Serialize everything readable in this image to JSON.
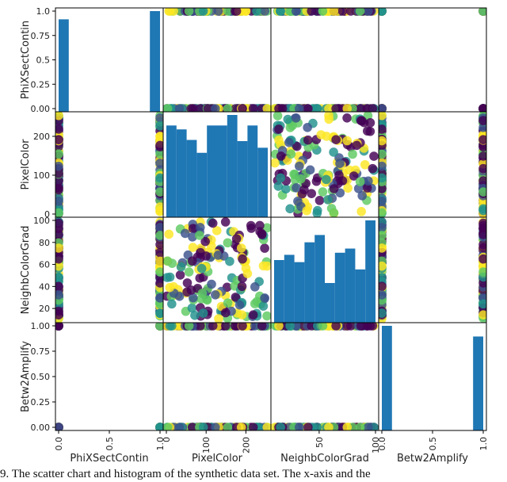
{
  "chart_data": {
    "type": "scatter-matrix",
    "variables": [
      "PhiXSectContin",
      "PixelColor",
      "NeighbColorGrad",
      "Betw2Amplify"
    ],
    "axis_ticks": {
      "PhiXSectContin": {
        "range": [
          0,
          1
        ],
        "labels": [
          "0.0",
          "0.5",
          "1.0"
        ],
        "values": [
          0,
          0.5,
          1
        ]
      },
      "PixelColor": {
        "range": [
          0,
          255
        ],
        "labels": [
          "0",
          "100",
          "200"
        ],
        "values": [
          0,
          100,
          200
        ]
      },
      "NeighbColorGrad": {
        "range": [
          10,
          100
        ],
        "labels": [
          "50",
          "100"
        ],
        "values": [
          50,
          100
        ]
      },
      "Betw2Amplify": {
        "range": [
          0,
          1
        ],
        "labels": [
          "0.0",
          "0.5",
          "1.0"
        ],
        "values": [
          0,
          0.5,
          1
        ]
      }
    },
    "y_ticks": {
      "PhiXSectContin": [
        "0.00",
        "0.25",
        "0.5",
        "0.75",
        "1.0"
      ],
      "PixelColor": [
        "0",
        "100",
        "200"
      ],
      "NeighbColorGrad": [
        "20",
        "40",
        "60",
        "80",
        "100"
      ],
      "Betw2Amplify": [
        "0.00",
        "0.25",
        "0.50",
        "0.75",
        "1.00"
      ]
    },
    "histograms": {
      "PhiXSectContin": {
        "bins": [
          [
            0,
            0.1,
            0.9
          ],
          [
            0.9,
            1.0,
            0.98
          ]
        ]
      },
      "PixelColor": {
        "bins": [
          [
            0,
            25.5,
            235
          ],
          [
            25.5,
            51,
            225
          ],
          [
            51,
            76.5,
            198
          ],
          [
            76.5,
            102,
            165
          ],
          [
            102,
            127.5,
            235
          ],
          [
            127.5,
            153,
            235
          ],
          [
            153,
            178.5,
            262
          ],
          [
            178.5,
            204,
            195
          ],
          [
            204,
            229.5,
            235
          ],
          [
            229.5,
            255,
            178
          ]
        ]
      },
      "NeighbColorGrad": {
        "bins": [
          [
            10,
            19,
            60
          ],
          [
            19,
            28,
            65
          ],
          [
            28,
            37,
            58
          ],
          [
            37,
            46,
            77
          ],
          [
            46,
            55,
            84
          ],
          [
            55,
            64,
            38
          ],
          [
            64,
            73,
            67
          ],
          [
            73,
            82,
            71
          ],
          [
            82,
            91,
            51
          ],
          [
            91,
            100,
            98
          ]
        ]
      },
      "Betw2Amplify": {
        "bins": [
          [
            0,
            0.1,
            0.98
          ],
          [
            0.9,
            1.0,
            0.88
          ]
        ]
      }
    },
    "colors": {
      "bar": "#1f77b4",
      "points": [
        "#440154",
        "#3b528b",
        "#21918c",
        "#5ec962",
        "#fde725"
      ]
    }
  },
  "caption": "9. The scatter chart and histogram of the synthetic data set. The x-axis and the"
}
